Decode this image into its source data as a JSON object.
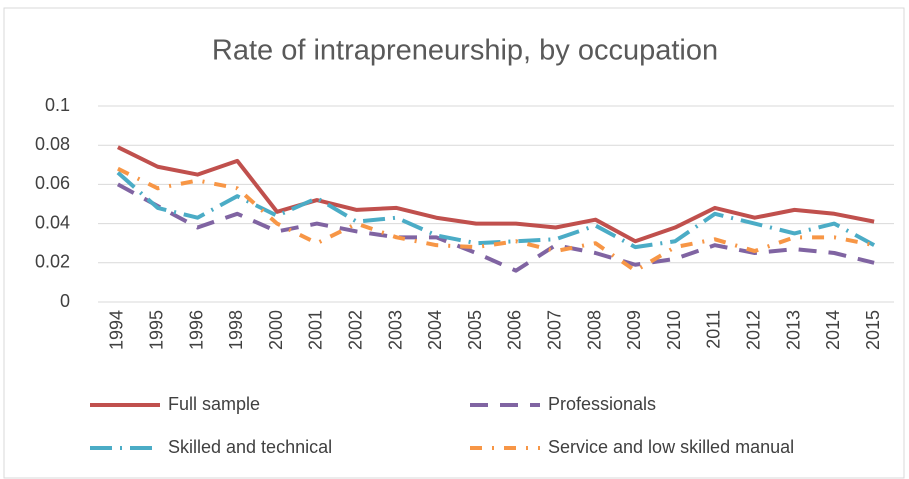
{
  "chart_data": {
    "type": "line",
    "title": "Rate of intrapreneurship, by occupation",
    "categories": [
      "1994",
      "1995",
      "1996",
      "1998",
      "2000",
      "2001",
      "2002",
      "2003",
      "2004",
      "2005",
      "2006",
      "2007",
      "2008",
      "2009",
      "2010",
      "2011",
      "2012",
      "2013",
      "2014",
      "2015"
    ],
    "series": [
      {
        "name": "Full sample",
        "color": "#c0504d",
        "values": [
          0.079,
          0.069,
          0.065,
          0.072,
          0.046,
          0.052,
          0.047,
          0.048,
          0.043,
          0.04,
          0.04,
          0.038,
          0.042,
          0.031,
          0.038,
          0.048,
          0.043,
          0.047,
          0.045,
          0.041
        ]
      },
      {
        "name": "Professionals",
        "color": "#8064a2",
        "values": [
          0.06,
          0.049,
          0.038,
          0.045,
          0.036,
          0.04,
          0.036,
          0.033,
          0.033,
          0.025,
          0.016,
          0.029,
          0.025,
          0.019,
          0.022,
          0.029,
          0.025,
          0.027,
          0.025,
          0.02
        ]
      },
      {
        "name": "Skilled and technical",
        "color": "#4bacc6",
        "values": [
          0.066,
          0.048,
          0.043,
          0.054,
          0.044,
          0.053,
          0.041,
          0.043,
          0.034,
          0.03,
          0.031,
          0.032,
          0.039,
          0.028,
          0.031,
          0.045,
          0.04,
          0.035,
          0.04,
          0.029
        ]
      },
      {
        "name": "Service and low skilled manual",
        "color": "#f79646",
        "values": [
          0.068,
          0.058,
          0.062,
          0.058,
          0.04,
          0.03,
          0.04,
          0.033,
          0.029,
          0.028,
          0.031,
          0.026,
          0.03,
          0.016,
          0.028,
          0.032,
          0.026,
          0.033,
          0.033,
          0.029
        ]
      }
    ],
    "ylim": [
      0,
      0.1
    ],
    "yticks": [
      0,
      0.02,
      0.04,
      0.06,
      0.08,
      0.1
    ],
    "grid": true,
    "legend": "bottom"
  }
}
